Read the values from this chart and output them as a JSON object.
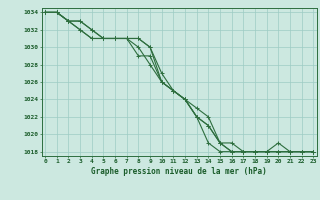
{
  "title": "Graphe pression niveau de la mer (hPa)",
  "series": [
    [
      1034,
      1034,
      1033,
      1033,
      1032,
      1031,
      1031,
      1031,
      1031,
      1030,
      1027,
      1025,
      1024,
      1022,
      1021,
      1019,
      1018,
      1018,
      1018,
      1018,
      1018,
      1018,
      1018,
      1018
    ],
    [
      1034,
      1034,
      1033,
      1033,
      1032,
      1031,
      1031,
      1031,
      1031,
      1030,
      1026,
      1025,
      1024,
      1022,
      1021,
      1019,
      1019,
      1018,
      1018,
      1018,
      1018,
      1018,
      1018,
      1018
    ],
    [
      1034,
      1034,
      1033,
      1032,
      1031,
      1031,
      1031,
      1031,
      1030,
      1028,
      1026,
      1025,
      1024,
      1023,
      1022,
      1019,
      1018,
      1018,
      1018,
      1018,
      1019,
      1018,
      1018,
      1018
    ],
    [
      1034,
      1034,
      1033,
      1032,
      1031,
      1031,
      1031,
      1031,
      1029,
      1029,
      1026,
      1025,
      1024,
      1022,
      1019,
      1018,
      1018,
      1018,
      1018,
      1018,
      1018,
      1018,
      1018,
      1018
    ]
  ],
  "line_color": "#2d6e3e",
  "bg_color": "#cce8e0",
  "grid_color": "#9eccc4",
  "text_color": "#1a5c2a",
  "spine_color": "#2d6e3e",
  "ylim_min": 1017.5,
  "ylim_max": 1034.5,
  "yticks": [
    1018,
    1020,
    1022,
    1024,
    1026,
    1028,
    1030,
    1032,
    1034
  ],
  "xticks": [
    0,
    1,
    2,
    3,
    4,
    5,
    6,
    7,
    8,
    9,
    10,
    11,
    12,
    13,
    14,
    15,
    16,
    17,
    18,
    19,
    20,
    21,
    22,
    23
  ],
  "figwidth": 3.2,
  "figheight": 2.0,
  "dpi": 100
}
